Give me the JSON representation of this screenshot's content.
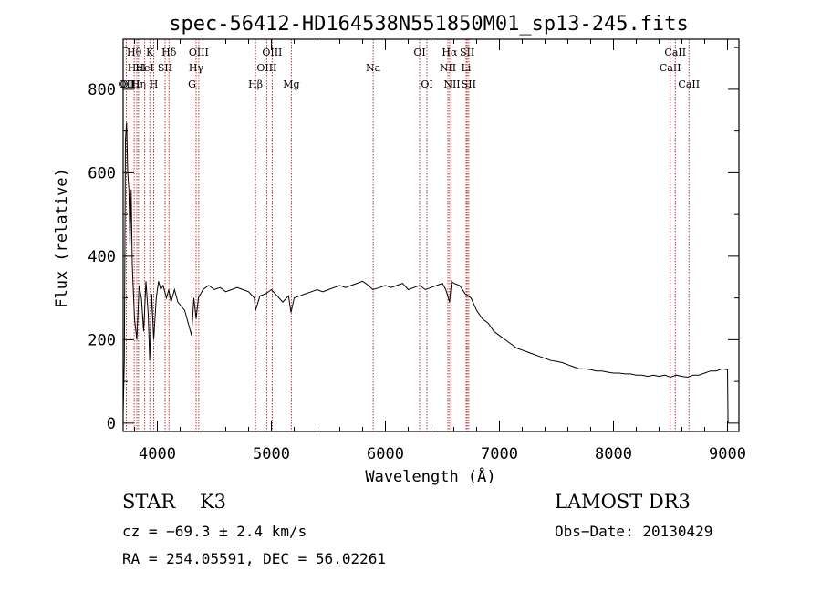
{
  "chart_data": {
    "type": "line",
    "title": "spec-56412-HD164538N551850M01_sp13-245.fits",
    "xlabel": "Wavelength (Å)",
    "ylabel": "Flux (relative)",
    "xlim": [
      3700,
      9100
    ],
    "ylim": [
      -20,
      920
    ],
    "xticks": [
      4000,
      5000,
      6000,
      7000,
      8000,
      9000
    ],
    "yticks": [
      0,
      200,
      400,
      600,
      800
    ],
    "line_color": "#000000",
    "marker_color": "#b22222",
    "grid": false,
    "series": [
      {
        "x": [
          3700,
          3710,
          3720,
          3730,
          3740,
          3750,
          3760,
          3770,
          3780,
          3790,
          3800,
          3820,
          3840,
          3860,
          3880,
          3900,
          3920,
          3933,
          3950,
          3968,
          3990,
          4010,
          4030,
          4050,
          4080,
          4100,
          4120,
          4150,
          4180,
          4210,
          4240,
          4270,
          4300,
          4320,
          4340,
          4360,
          4400,
          4450,
          4500,
          4550,
          4600,
          4650,
          4700,
          4750,
          4800,
          4850,
          4861,
          4900,
          4950,
          5000,
          5050,
          5100,
          5150,
          5172,
          5200,
          5250,
          5300,
          5350,
          5400,
          5450,
          5500,
          5550,
          5600,
          5650,
          5700,
          5750,
          5800,
          5850,
          5890,
          5950,
          6000,
          6050,
          6100,
          6150,
          6200,
          6250,
          6300,
          6350,
          6400,
          6450,
          6500,
          6530,
          6563,
          6580,
          6600,
          6650,
          6700,
          6750,
          6800,
          6850,
          6900,
          6950,
          7000,
          7050,
          7100,
          7150,
          7200,
          7250,
          7300,
          7350,
          7400,
          7450,
          7500,
          7550,
          7600,
          7650,
          7700,
          7750,
          7800,
          7850,
          7900,
          7950,
          8000,
          8050,
          8100,
          8150,
          8200,
          8250,
          8300,
          8350,
          8400,
          8450,
          8500,
          8550,
          8600,
          8650,
          8700,
          8750,
          8800,
          8850,
          8900,
          8950,
          9000,
          9005
        ],
        "y": [
          20,
          150,
          680,
          720,
          600,
          560,
          420,
          560,
          380,
          310,
          250,
          200,
          330,
          300,
          220,
          340,
          260,
          150,
          310,
          200,
          300,
          340,
          320,
          330,
          300,
          320,
          290,
          320,
          290,
          280,
          270,
          240,
          210,
          300,
          250,
          300,
          320,
          330,
          320,
          325,
          315,
          320,
          325,
          320,
          315,
          300,
          270,
          305,
          310,
          320,
          305,
          290,
          305,
          265,
          300,
          305,
          310,
          315,
          320,
          315,
          320,
          325,
          330,
          325,
          330,
          335,
          340,
          330,
          320,
          325,
          330,
          325,
          330,
          335,
          320,
          325,
          330,
          320,
          325,
          330,
          335,
          320,
          290,
          340,
          335,
          330,
          310,
          300,
          270,
          250,
          240,
          220,
          210,
          200,
          190,
          180,
          175,
          170,
          165,
          160,
          155,
          150,
          148,
          145,
          140,
          135,
          130,
          130,
          128,
          125,
          125,
          122,
          120,
          120,
          118,
          118,
          115,
          115,
          112,
          115,
          112,
          115,
          110,
          115,
          112,
          110,
          115,
          115,
          120,
          125,
          125,
          130,
          128,
          0
        ]
      }
    ],
    "line_markers": [
      {
        "wl": 3727,
        "label": "OII",
        "row": 3
      },
      {
        "wl": 3760,
        "label": "OIII",
        "row": 3
      },
      {
        "wl": 3797,
        "label": "Hθ",
        "row": 1
      },
      {
        "wl": 3820,
        "label": "HeI",
        "row": 2
      },
      {
        "wl": 3835,
        "label": "Hη",
        "row": 3
      },
      {
        "wl": 3889,
        "label": "HeI",
        "row": 2
      },
      {
        "wl": 3934,
        "label": "K",
        "row": 1
      },
      {
        "wl": 3968,
        "label": "H",
        "row": 3
      },
      {
        "wl": 4068,
        "label": "SII",
        "row": 2
      },
      {
        "wl": 4102,
        "label": "Hδ",
        "row": 1
      },
      {
        "wl": 4304,
        "label": "G",
        "row": 3
      },
      {
        "wl": 4340,
        "label": "Hγ",
        "row": 2
      },
      {
        "wl": 4363,
        "label": "OIII",
        "row": 1
      },
      {
        "wl": 4861,
        "label": "Hβ",
        "row": 3
      },
      {
        "wl": 4959,
        "label": "OIII",
        "row": 2
      },
      {
        "wl": 5007,
        "label": "OIII",
        "row": 1
      },
      {
        "wl": 5175,
        "label": "Mg",
        "row": 3
      },
      {
        "wl": 5893,
        "label": "Na",
        "row": 2
      },
      {
        "wl": 6300,
        "label": "OI",
        "row": 1
      },
      {
        "wl": 6364,
        "label": "OI",
        "row": 3
      },
      {
        "wl": 6548,
        "label": "NII",
        "row": 2
      },
      {
        "wl": 6563,
        "label": "Hα",
        "row": 1
      },
      {
        "wl": 6584,
        "label": "NII",
        "row": 3
      },
      {
        "wl": 6708,
        "label": "Li",
        "row": 2
      },
      {
        "wl": 6717,
        "label": "SII",
        "row": 1
      },
      {
        "wl": 6731,
        "label": "SII",
        "row": 3
      },
      {
        "wl": 8498,
        "label": "CaII",
        "row": 2
      },
      {
        "wl": 8542,
        "label": "CaII",
        "row": 1
      },
      {
        "wl": 8662,
        "label": "CaII",
        "row": 3
      }
    ]
  },
  "info": {
    "object_class": "STAR",
    "subclass": "K3",
    "survey": "LAMOST DR3",
    "cz": "cz = −69.3 ± 2.4 km/s",
    "obs_date": "Obs−Date: 20130429",
    "radec": "RA = 254.05591, DEC =  56.02261"
  }
}
